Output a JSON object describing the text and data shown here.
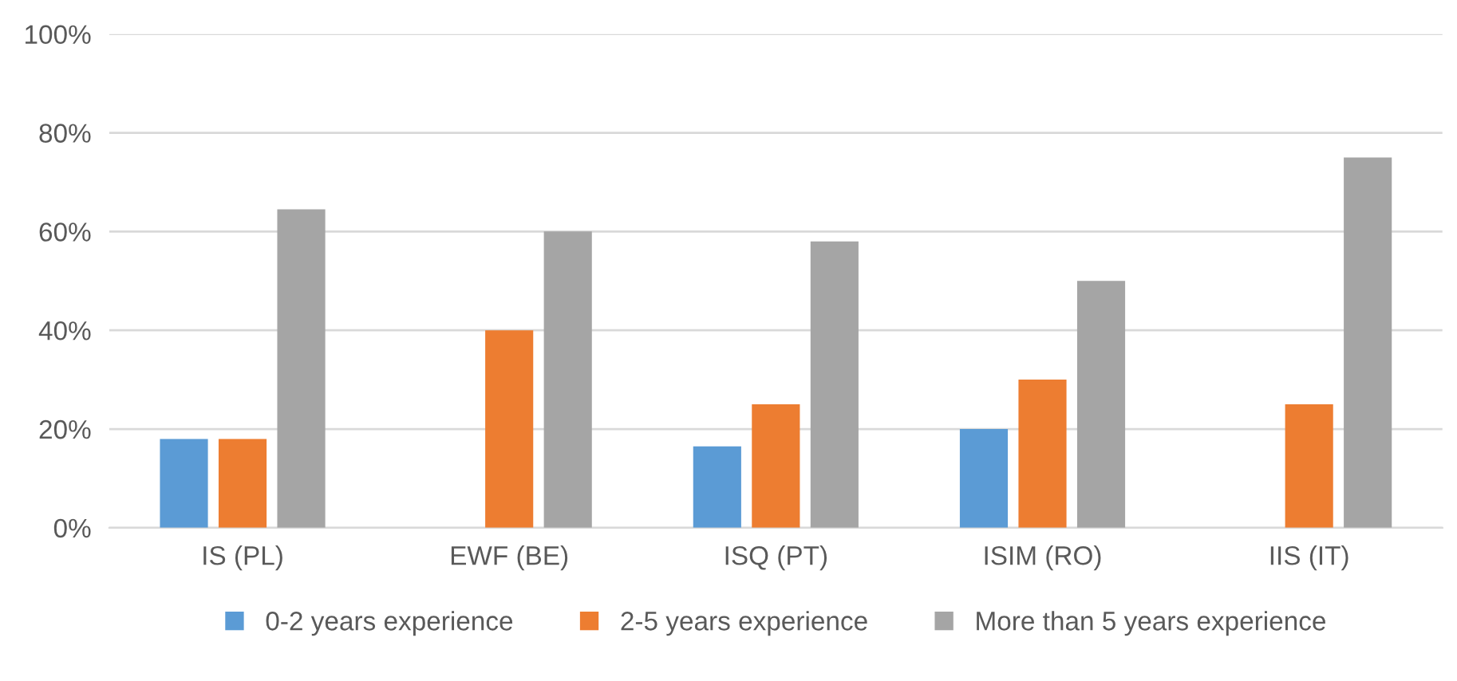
{
  "chart_data": {
    "type": "bar",
    "categories": [
      "IS (PL)",
      "EWF (BE)",
      "ISQ (PT)",
      "ISIM (RO)",
      "IIS (IT)"
    ],
    "series": [
      {
        "name": "0-2 years experience",
        "color": "#5b9bd5",
        "values": [
          18,
          null,
          16.5,
          20,
          null
        ]
      },
      {
        "name": "2-5 years experience",
        "color": "#ed7d31",
        "values": [
          18,
          40,
          25,
          30,
          25
        ]
      },
      {
        "name": "More than 5 years experience",
        "color": "#a5a5a5",
        "values": [
          64.5,
          60,
          58,
          50,
          75
        ]
      }
    ],
    "ylim": [
      0,
      100
    ],
    "yticks": [
      {
        "value": 0,
        "label": "0%"
      },
      {
        "value": 20,
        "label": "20%"
      },
      {
        "value": 40,
        "label": "40%"
      },
      {
        "value": 60,
        "label": "60%"
      },
      {
        "value": 80,
        "label": "80%"
      },
      {
        "value": 100,
        "label": "100%"
      }
    ],
    "grid": "y",
    "legend": "bottom"
  }
}
